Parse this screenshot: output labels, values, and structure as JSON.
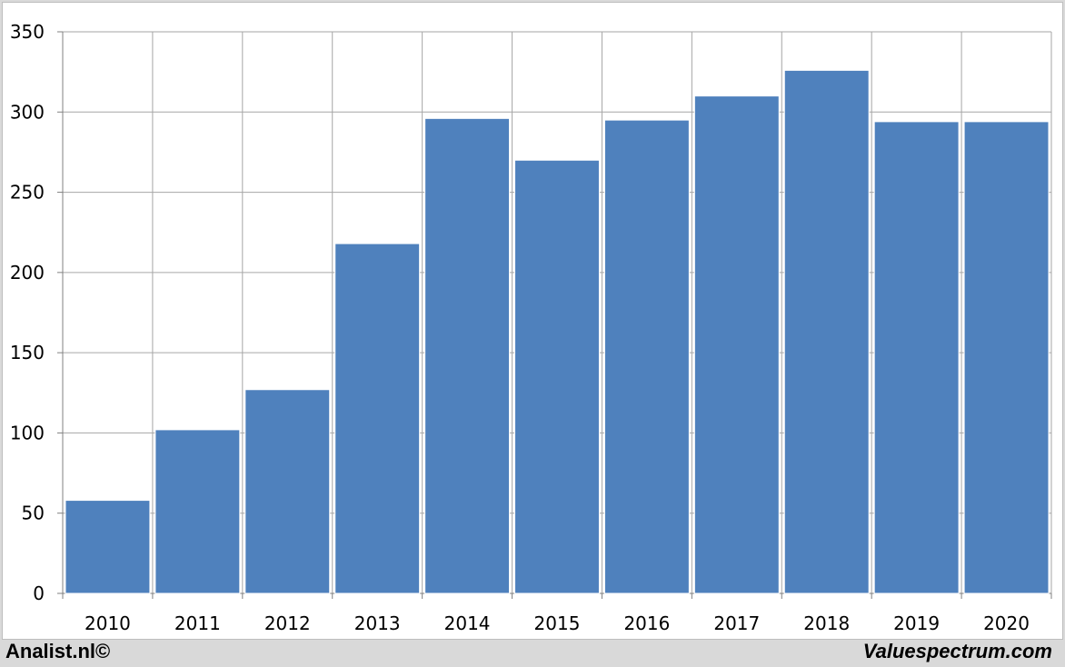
{
  "chart_data": {
    "type": "bar",
    "categories": [
      "2010",
      "2011",
      "2012",
      "2013",
      "2014",
      "2015",
      "2016",
      "2017",
      "2018",
      "2019",
      "2020"
    ],
    "values": [
      58,
      102,
      127,
      218,
      296,
      270,
      295,
      310,
      326,
      294,
      294
    ],
    "yticks": [
      "0",
      "50",
      "100",
      "150",
      "200",
      "250",
      "300",
      "350"
    ],
    "ylim": [
      0,
      350
    ],
    "grid": true,
    "bar_color": "#4f81bd",
    "grid_color": "#a6a6a6"
  },
  "footer": {
    "left": "Analist.nl©",
    "right": "Valuespectrum.com"
  }
}
